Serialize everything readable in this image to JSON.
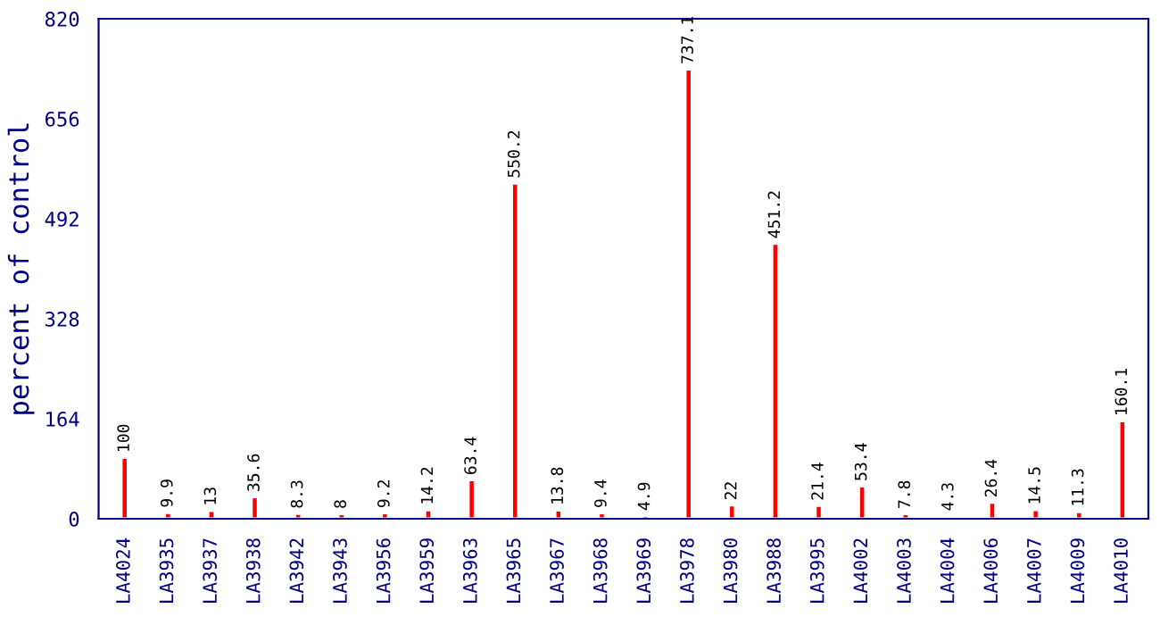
{
  "chart_data": {
    "type": "bar",
    "ylabel": "percent of control",
    "categories": [
      "LA4024",
      "LA3935",
      "LA3937",
      "LA3938",
      "LA3942",
      "LA3943",
      "LA3956",
      "LA3959",
      "LA3963",
      "LA3965",
      "LA3967",
      "LA3968",
      "LA3969",
      "LA3978",
      "LA3980",
      "LA3988",
      "LA3995",
      "LA4002",
      "LA4003",
      "LA4004",
      "LA4006",
      "LA4007",
      "LA4009",
      "LA4010"
    ],
    "values": [
      100,
      9.9,
      13,
      35.6,
      8.3,
      8,
      9.2,
      14.2,
      63.4,
      550.2,
      13.8,
      9.4,
      4.9,
      737.1,
      22,
      451.2,
      21.4,
      53.4,
      7.8,
      4.3,
      26.4,
      14.5,
      11.3,
      160.1
    ],
    "color": "#ff0000",
    "data_labels": true,
    "ylim": [
      0,
      820
    ],
    "yticks": [
      0,
      164,
      328,
      492,
      656,
      820
    ],
    "grid": false,
    "legend": false
  }
}
